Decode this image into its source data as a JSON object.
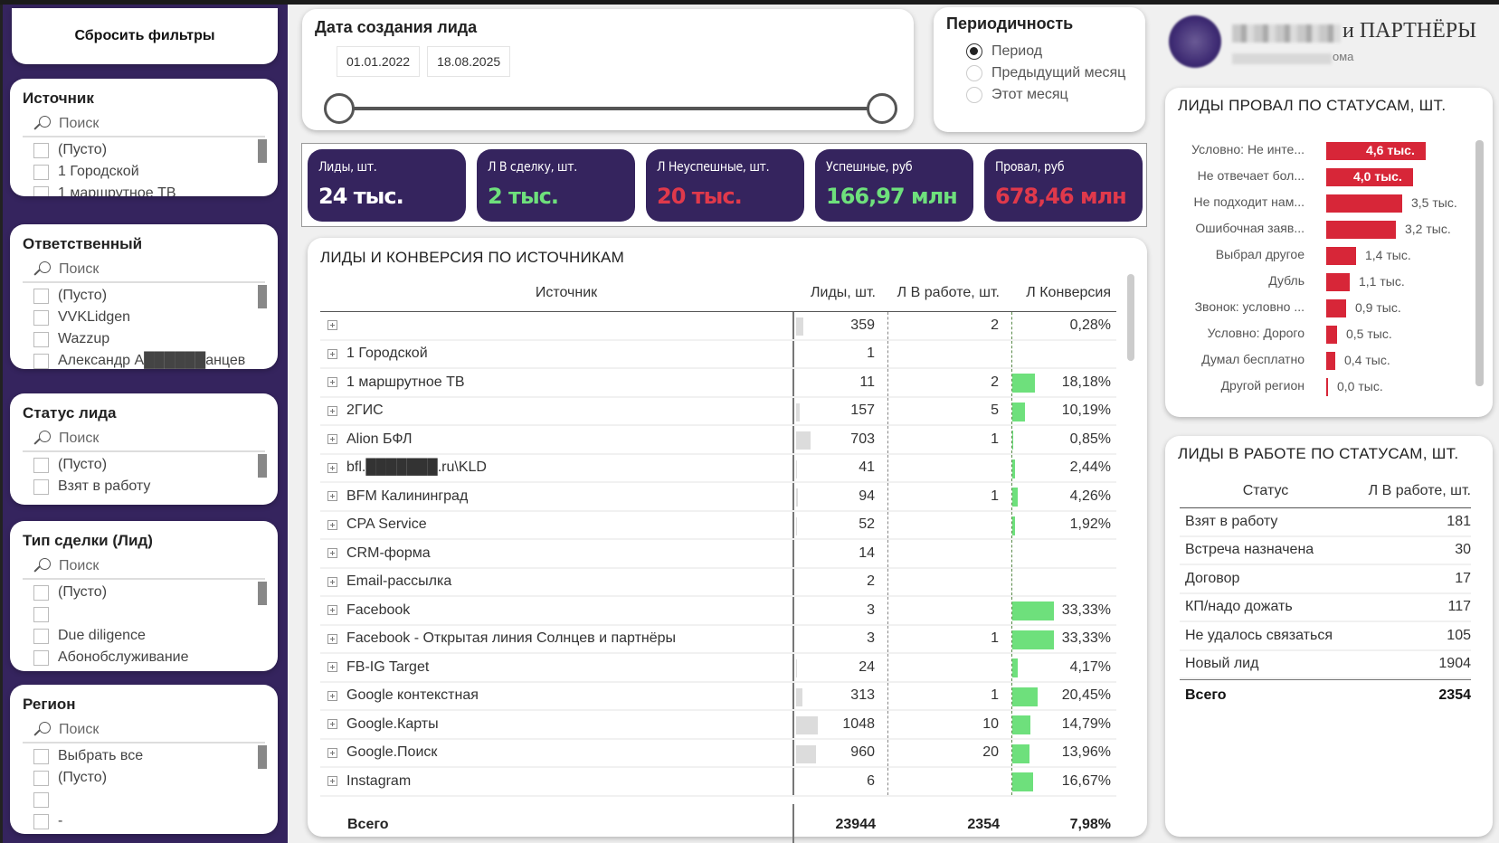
{
  "reset_filters": "Сбросить фильтры",
  "slicers": [
    {
      "title": "Источник",
      "search_placeholder": "Поиск",
      "items": [
        "(Пусто)",
        "1 Городской",
        "1 маршрутное ТВ"
      ]
    },
    {
      "title": "Ответственный",
      "search_placeholder": "Поиск",
      "items": [
        "(Пусто)",
        "VVKLidgen",
        "Wazzup",
        "Александр А██████анцев"
      ]
    },
    {
      "title": "Статус лида",
      "search_placeholder": "Поиск",
      "items": [
        "(Пусто)",
        "Взят в работу"
      ]
    },
    {
      "title": "Тип сделки (Лид)",
      "search_placeholder": "Поиск",
      "items": [
        "(Пусто)",
        "",
        "Due diligence",
        "Абонобслуживание"
      ]
    },
    {
      "title": "Регион",
      "search_placeholder": "Поиск",
      "items": [
        "Выбрать все",
        "(Пусто)",
        "",
        "-"
      ]
    }
  ],
  "date_filter": {
    "title": "Дата создания лида",
    "start": "01.01.2022",
    "end": "18.08.2025"
  },
  "period": {
    "title": "Периодичность",
    "options": [
      "Период",
      "Предыдущий месяц",
      "Этот месяц"
    ],
    "selected": "Период"
  },
  "logo": {
    "text": "и ПАРТНЁРЫ",
    "subtitle": "ома"
  },
  "kpis": [
    {
      "label": "Лиды, шт.",
      "value": "24 тыс.",
      "color": "#ffffff"
    },
    {
      "label": "Л В сделку, шт.",
      "value": "2 тыс.",
      "color": "#6ee07c"
    },
    {
      "label": "Л Неуспешные, шт.",
      "value": "20 тыс.",
      "color": "#e0394b"
    },
    {
      "label": "Успешные, руб",
      "value": "166,97 млн",
      "color": "#6ee07c"
    },
    {
      "label": "Провал, руб",
      "value": "678,46 млн",
      "color": "#e0394b"
    }
  ],
  "sources_table": {
    "title": "ЛИДЫ И КОНВЕРСИЯ ПО ИСТОЧНИКАМ",
    "columns": [
      "Источник",
      "Лиды, шт.",
      "Л В работе, шт.",
      "Л Конверсия"
    ],
    "rows": [
      {
        "source": "",
        "leads": 359,
        "work": "2",
        "conv": "0,28%",
        "conv_value": 0.28
      },
      {
        "source": "1 Городской",
        "leads": 1,
        "work": "",
        "conv": "",
        "conv_value": 0
      },
      {
        "source": "1 маршрутное ТВ",
        "leads": 11,
        "work": "2",
        "conv": "18,18%",
        "conv_value": 18.18
      },
      {
        "source": "2ГИС",
        "leads": 157,
        "work": "5",
        "conv": "10,19%",
        "conv_value": 10.19
      },
      {
        "source": "Alion БФЛ",
        "leads": 703,
        "work": "1",
        "conv": "0,85%",
        "conv_value": 0.85
      },
      {
        "source": "bfl.███████.ru\\KLD",
        "leads": 41,
        "work": "",
        "conv": "2,44%",
        "conv_value": 2.44
      },
      {
        "source": "BFM Калининград",
        "leads": 94,
        "work": "1",
        "conv": "4,26%",
        "conv_value": 4.26
      },
      {
        "source": "CPA Service",
        "leads": 52,
        "work": "",
        "conv": "1,92%",
        "conv_value": 1.92
      },
      {
        "source": "CRM-форма",
        "leads": 14,
        "work": "",
        "conv": "",
        "conv_value": 0
      },
      {
        "source": "Email-рассылка",
        "leads": 2,
        "work": "",
        "conv": "",
        "conv_value": 0
      },
      {
        "source": "Facebook",
        "leads": 3,
        "work": "",
        "conv": "33,33%",
        "conv_value": 33.33
      },
      {
        "source": "Facebook - Открытая линия Солнцев и партнёры",
        "leads": 3,
        "work": "1",
        "conv": "33,33%",
        "conv_value": 33.33
      },
      {
        "source": "FB-IG Target",
        "leads": 24,
        "work": "",
        "conv": "4,17%",
        "conv_value": 4.17
      },
      {
        "source": "Google контекстная",
        "leads": 313,
        "work": "1",
        "conv": "20,45%",
        "conv_value": 20.45
      },
      {
        "source": "Google.Карты",
        "leads": 1048,
        "work": "10",
        "conv": "14,79%",
        "conv_value": 14.79
      },
      {
        "source": "Google.Поиск",
        "leads": 960,
        "work": "20",
        "conv": "13,96%",
        "conv_value": 13.96
      },
      {
        "source": "Instagram",
        "leads": 6,
        "work": "",
        "conv": "16,67%",
        "conv_value": 16.67
      }
    ],
    "total": {
      "label": "Всего",
      "leads": "23944",
      "work": "2354",
      "conv": "7,98%"
    }
  },
  "fail_chart": {
    "title": "ЛИДЫ ПРОВАЛ ПО СТАТУСАМ, ШТ.",
    "bars": [
      {
        "label": "Условно: Не инте...",
        "value": 4.6,
        "display": "4,6 тыс."
      },
      {
        "label": "Не отвечает бол...",
        "value": 4.0,
        "display": "4,0 тыс."
      },
      {
        "label": "Не подходит нам...",
        "value": 3.5,
        "display": "3,5 тыс."
      },
      {
        "label": "Ошибочная заяв...",
        "value": 3.2,
        "display": "3,2 тыс."
      },
      {
        "label": "Выбрал другое",
        "value": 1.4,
        "display": "1,4 тыс."
      },
      {
        "label": "Дубль",
        "value": 1.1,
        "display": "1,1 тыс."
      },
      {
        "label": "Звонок: условно ...",
        "value": 0.9,
        "display": "0,9 тыс."
      },
      {
        "label": "Условно: Дорого",
        "value": 0.5,
        "display": "0,5 тыс."
      },
      {
        "label": "Думал бесплатно",
        "value": 0.4,
        "display": "0,4 тыс."
      },
      {
        "label": "Другой регион",
        "value": 0.0,
        "display": "0,0 тыс."
      }
    ],
    "bar_color": "#d72638"
  },
  "work_table": {
    "title": "ЛИДЫ В РАБОТЕ ПО СТАТУСАМ, ШТ.",
    "columns": [
      "Статус",
      "Л В работе, шт."
    ],
    "rows": [
      {
        "status": "Взят в работу",
        "count": "181"
      },
      {
        "status": "Встреча назначена",
        "count": "30"
      },
      {
        "status": "Договор",
        "count": "17"
      },
      {
        "status": "КП/надо дожать",
        "count": "117"
      },
      {
        "status": "Не удалось связаться",
        "count": "105"
      },
      {
        "status": "Новый лид",
        "count": "1904"
      }
    ],
    "total": {
      "label": "Всего",
      "count": "2354"
    }
  }
}
